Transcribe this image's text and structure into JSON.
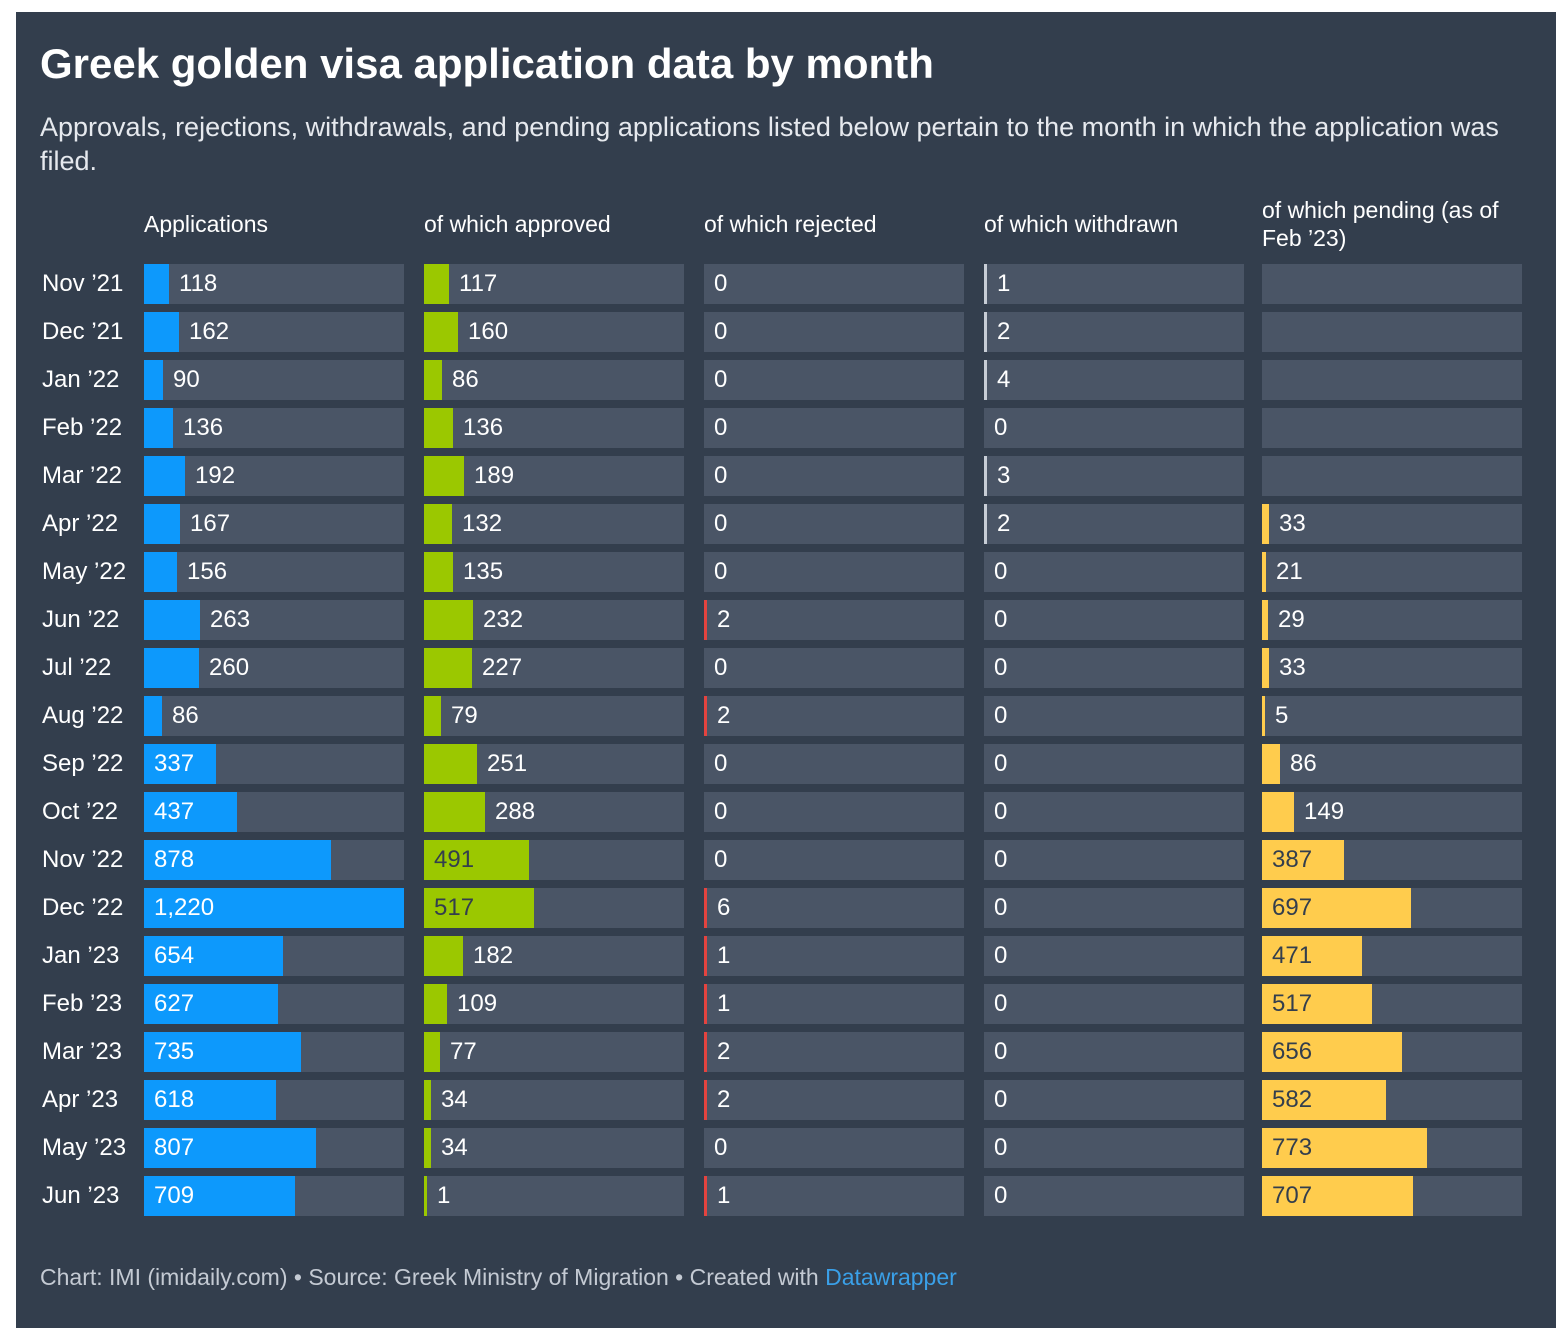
{
  "title": "Greek golden visa application data by month",
  "subtitle": "Approvals, rejections, withdrawals, and pending applications listed below pertain to the month in which the application was filed.",
  "footer": {
    "prefix": "Chart: IMI (imidaily.com) • Source: Greek Ministry of Migration • Created with ",
    "brand": "Datawrapper"
  },
  "chart_data": {
    "type": "table",
    "categories": [
      "Nov ’21",
      "Dec ’21",
      "Jan ’22",
      "Feb ’22",
      "Mar ’22",
      "Apr ’22",
      "May ’22",
      "Jun ’22",
      "Jul ’22",
      "Aug ’22",
      "Sep ’22",
      "Oct ’22",
      "Nov ’22",
      "Dec ’22",
      "Jan ’23",
      "Feb ’23",
      "Mar ’23",
      "Apr ’23",
      "May ’23",
      "Jun ’23"
    ],
    "series": [
      {
        "name": "Applications",
        "color": "#0d99fc",
        "label_color": "#ffffff",
        "values": [
          118,
          162,
          90,
          136,
          192,
          167,
          156,
          263,
          260,
          86,
          337,
          437,
          878,
          1220,
          654,
          627,
          735,
          618,
          807,
          709
        ]
      },
      {
        "name": "of which approved",
        "color": "#9bc800",
        "label_color": "#333e4d",
        "values": [
          117,
          160,
          86,
          136,
          189,
          132,
          135,
          232,
          227,
          79,
          251,
          288,
          491,
          517,
          182,
          109,
          77,
          34,
          34,
          1
        ]
      },
      {
        "name": "of which rejected",
        "color": "#e4433f",
        "label_color": "#ffffff",
        "values": [
          0,
          0,
          0,
          0,
          0,
          0,
          0,
          2,
          0,
          2,
          0,
          0,
          0,
          6,
          1,
          1,
          2,
          2,
          0,
          1
        ]
      },
      {
        "name": "of which withdrawn",
        "color": "#c7cdd6",
        "label_color": "#333e4d",
        "values": [
          1,
          2,
          4,
          0,
          3,
          2,
          0,
          0,
          0,
          0,
          0,
          0,
          0,
          0,
          0,
          0,
          0,
          0,
          0,
          0
        ]
      },
      {
        "name": "of which pending (as of Feb ’23)",
        "color": "#ffcc4d",
        "label_color": "#333e4d",
        "values": [
          null,
          null,
          null,
          null,
          null,
          33,
          21,
          29,
          33,
          5,
          86,
          149,
          387,
          697,
          471,
          517,
          656,
          582,
          773,
          707
        ]
      }
    ],
    "scale_max": 1220
  }
}
